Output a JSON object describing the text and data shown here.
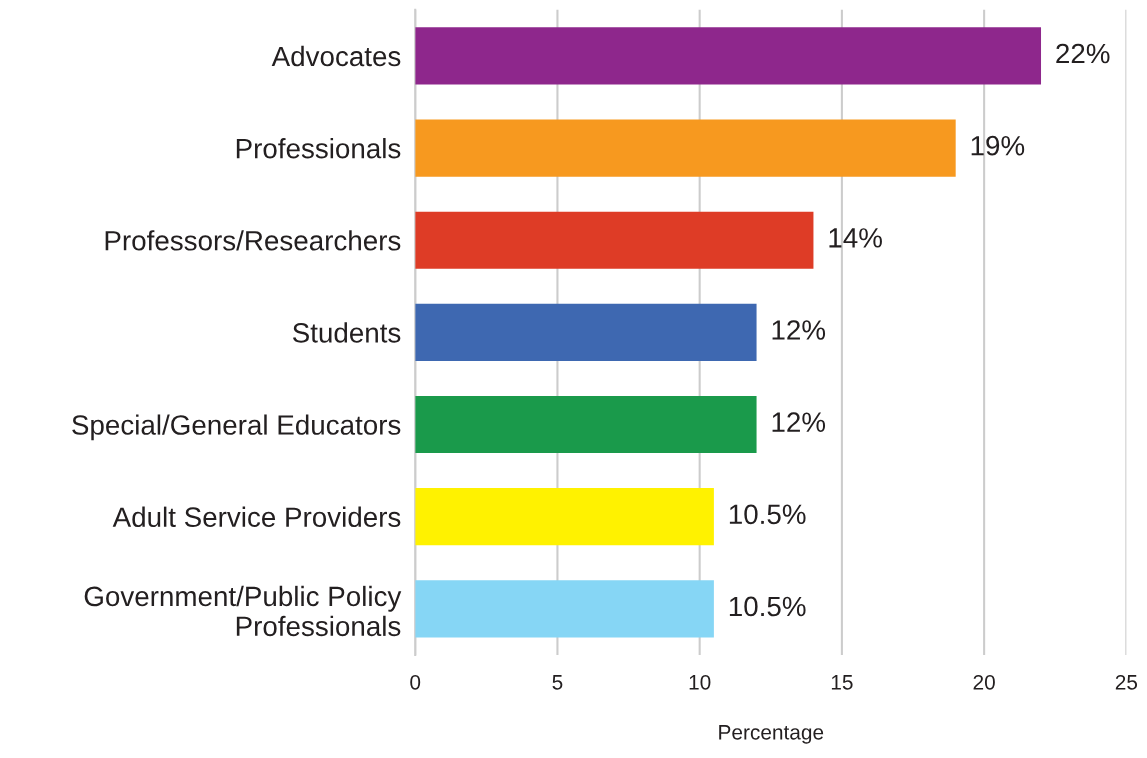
{
  "chart_data": {
    "type": "bar",
    "orientation": "horizontal",
    "xlabel": "Percentage",
    "categories": [
      "Advocates",
      "Professionals",
      "Professors/Researchers",
      "Students",
      "Special/General Educators",
      "Adult Service Providers",
      "Government/Public Policy\nProfessionals"
    ],
    "values": [
      22,
      19,
      14,
      12,
      12,
      10.5,
      10.5
    ],
    "colors": [
      "#8e278c",
      "#f7991f",
      "#de3c26",
      "#3e68b1",
      "#1a9a4b",
      "#fff200",
      "#86d6f5"
    ],
    "value_labels": [
      "22%",
      "19%",
      "14%",
      "12%",
      "12%",
      "10.5%",
      "10.5%"
    ],
    "xlim": [
      0,
      25
    ],
    "xticks": [
      0,
      5,
      10,
      15,
      20,
      25
    ],
    "grid": "x",
    "legend": false
  }
}
